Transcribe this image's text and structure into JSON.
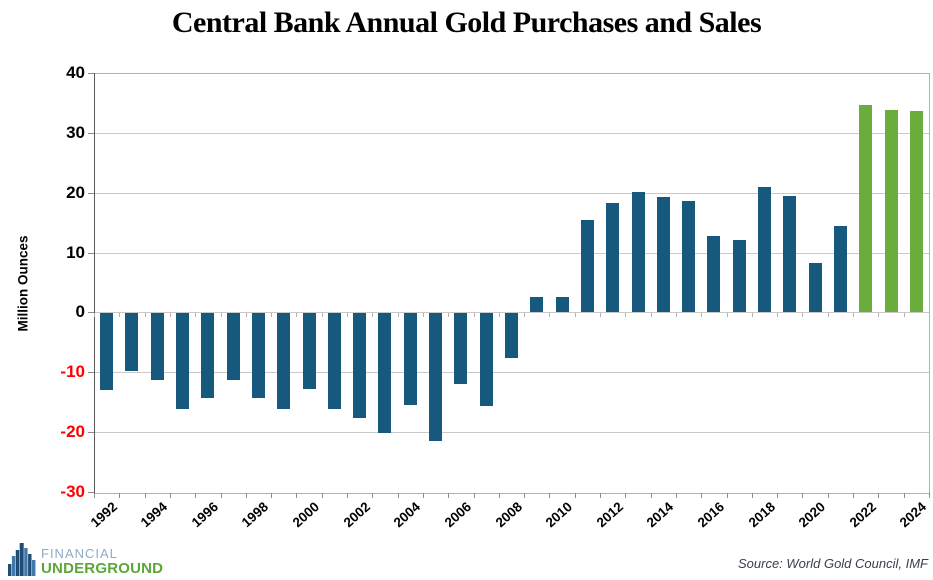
{
  "title": "Central Bank Annual Gold Purchases and Sales",
  "source": "Source: World Gold Council, IMF",
  "logo": {
    "line1": "FINANCIAL",
    "line2": "UNDERGROUND"
  },
  "colors": {
    "bar_blue": "#17587E",
    "bar_green": "#6AAD3C",
    "grid": "#C9C9C9",
    "border": "#B3B3B3",
    "axis": "#595959",
    "tick": "#8C8C8C",
    "positive_label": "#000000",
    "negative_label": "#FF0000",
    "logo_blue_text": "#92A9C7",
    "logo_green_text": "#5BA637",
    "logo_icon_navy": "#1E4C74",
    "logo_icon_steel": "#3F78A9",
    "source_text": "#39404F"
  },
  "chart_data": {
    "type": "bar",
    "title": "Central Bank Annual Gold Purchases and Sales",
    "xlabel": "",
    "ylabel": "Million Ounces",
    "ylim": [
      -30,
      40
    ],
    "y_ticks": [
      40,
      30,
      20,
      10,
      0,
      -10,
      -20,
      -30
    ],
    "grid": true,
    "legend": null,
    "categories": [
      1992,
      1993,
      1994,
      1995,
      1996,
      1997,
      1998,
      1999,
      2000,
      2001,
      2002,
      2003,
      2004,
      2005,
      2006,
      2007,
      2008,
      2009,
      2010,
      2011,
      2012,
      2013,
      2014,
      2015,
      2016,
      2017,
      2018,
      2019,
      2020,
      2021,
      2022,
      2023,
      2024
    ],
    "values": [
      -12.8,
      -9.6,
      -11.1,
      -16.0,
      -14.2,
      -11.1,
      -14.2,
      -15.9,
      -12.7,
      -16.0,
      -17.4,
      -20.0,
      -15.3,
      -21.3,
      -11.8,
      -15.5,
      -7.4,
      2.6,
      2.6,
      15.5,
      18.3,
      20.2,
      19.3,
      18.6,
      12.7,
      12.1,
      21.0,
      19.5,
      8.2,
      14.4,
      34.7,
      33.8,
      33.6
    ],
    "x_tick_labels": [
      "1992",
      "1994",
      "1996",
      "1998",
      "2000",
      "2002",
      "2004",
      "2006",
      "2008",
      "2010",
      "2012",
      "2014",
      "2016",
      "2018",
      "2020",
      "2022",
      "2024"
    ],
    "highlight_years": [
      2022,
      2023,
      2024
    ]
  }
}
